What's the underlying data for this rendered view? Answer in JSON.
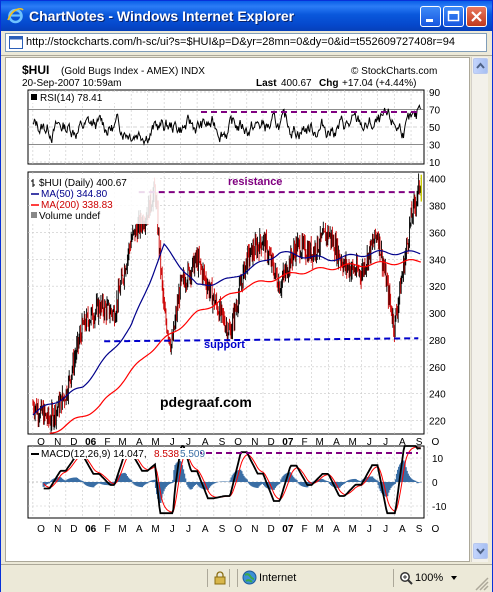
{
  "window": {
    "title": "ChartNotes - Windows Internet Explorer",
    "title_icon": "ie-logo-icon",
    "buttons": [
      "minimize",
      "maximize",
      "close"
    ]
  },
  "address": {
    "url": "http://stockcharts.com/h-sc/ui?s=$HUI&p=D&yr=28mn=0&dy=0&id=t552609727408r=94"
  },
  "status": {
    "zone_label": "Internet",
    "zoom_label": "100%"
  },
  "chart_header": {
    "symbol": "$HUI",
    "name": "(Gold Bugs Index - AMEX) INDX",
    "watermark": "© StockCharts.com",
    "date": "20-Sep-2007 10:59am",
    "last_label": "Last",
    "last_value": "400.67",
    "chg_label": "Chg",
    "chg_value": "+17.04 (+4.44%)"
  },
  "rsi_panel": {
    "legend": "RSI(14) 78.41",
    "ticks": [
      "90",
      "70",
      "50",
      "30",
      "10"
    ]
  },
  "price_panel": {
    "legend_main": "$HUI (Daily) 400.67",
    "legend_ma50": "MA(50) 344.80",
    "legend_ma200": "MA(200) 338.83",
    "legend_volume": "Volume undef",
    "annotation_resistance": "resistance",
    "annotation_support": "support",
    "annotation_author": "pdegraaf.com",
    "ticks": [
      "400",
      "380",
      "360",
      "340",
      "320",
      "300",
      "280",
      "260",
      "240",
      "220"
    ]
  },
  "macd_panel": {
    "legend_label": "MACD(12,26,9) 14.047,",
    "legend_v2": "8.538",
    "legend_v3": "5.509",
    "ticks": [
      "10",
      "0",
      "-10"
    ]
  },
  "x_axis": {
    "labels": [
      "O",
      "N",
      "D",
      "06",
      "F",
      "M",
      "A",
      "M",
      "J",
      "J",
      "A",
      "S",
      "O",
      "N",
      "D",
      "07",
      "F",
      "M",
      "A",
      "M",
      "J",
      "J",
      "A",
      "S",
      "O"
    ]
  },
  "colors": {
    "price_up": "#000000",
    "price_down": "#cc0000",
    "ma50": "#00008b",
    "ma200": "#ff0000",
    "annotation_purple": "#800080",
    "annotation_blue": "#0000cc",
    "macd_fill": "#3a6ea5",
    "rsi_line": "#000000"
  },
  "chart_data": {
    "type": "line",
    "title": "$HUI (Gold Bugs Index - AMEX) INDX",
    "x_range": [
      "2005-10",
      "2007-09-20"
    ],
    "ylim": [
      210,
      405
    ],
    "series": [
      {
        "name": "$HUI (Daily)",
        "points": [
          [
            "2005-10",
            232
          ],
          [
            "2005-11",
            220
          ],
          [
            "2005-12",
            240
          ],
          [
            "2006-01",
            290
          ],
          [
            "2006-02",
            305
          ],
          [
            "2006-03",
            300
          ],
          [
            "2006-04",
            355
          ],
          [
            "2006-05",
            375
          ],
          [
            "2006-05-15",
            392
          ],
          [
            "2006-06",
            300
          ],
          [
            "2006-06-15",
            275
          ],
          [
            "2006-07",
            320
          ],
          [
            "2006-08",
            340
          ],
          [
            "2006-09",
            310
          ],
          [
            "2006-10",
            285
          ],
          [
            "2006-11",
            340
          ],
          [
            "2006-12",
            355
          ],
          [
            "2007-01",
            320
          ],
          [
            "2007-02",
            350
          ],
          [
            "2007-03",
            345
          ],
          [
            "2007-04",
            360
          ],
          [
            "2007-05",
            335
          ],
          [
            "2007-06",
            330
          ],
          [
            "2007-07",
            360
          ],
          [
            "2007-08",
            290
          ],
          [
            "2007-09",
            370
          ],
          [
            "2007-09-20",
            400
          ]
        ]
      },
      {
        "name": "MA(50)",
        "points": [
          [
            "2005-10",
            225
          ],
          [
            "2006-01",
            245
          ],
          [
            "2006-04",
            290
          ],
          [
            "2006-06",
            350
          ],
          [
            "2006-08",
            320
          ],
          [
            "2006-10",
            325
          ],
          [
            "2007-01",
            345
          ],
          [
            "2007-04",
            340
          ],
          [
            "2007-07",
            345
          ],
          [
            "2007-09-20",
            344.8
          ]
        ]
      },
      {
        "name": "MA(200)",
        "points": [
          [
            "2005-11",
            210
          ],
          [
            "2006-02",
            230
          ],
          [
            "2006-05",
            270
          ],
          [
            "2006-08",
            300
          ],
          [
            "2006-11",
            320
          ],
          [
            "2007-02",
            330
          ],
          [
            "2007-05",
            335
          ],
          [
            "2007-09-20",
            338.83
          ]
        ]
      }
    ],
    "levels": [
      {
        "label": "resistance",
        "value": 390
      },
      {
        "label": "support",
        "value": 279
      }
    ],
    "rsi": {
      "ylim": [
        10,
        90
      ],
      "last": 78.41
    },
    "macd": {
      "ylim": [
        -15,
        15
      ],
      "macd": 14.047,
      "signal": 8.538,
      "histogram": 5.509
    }
  }
}
